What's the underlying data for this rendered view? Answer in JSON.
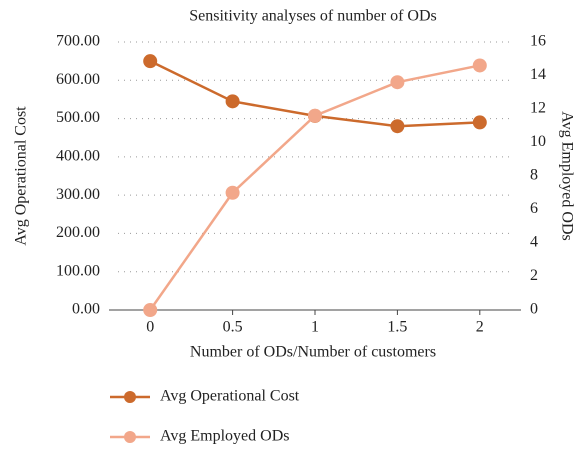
{
  "chart_data": {
    "type": "line",
    "title": "Sensitivity analyses of number of ODs",
    "x_label": "Number of ODs/Number of customers",
    "y_label": "Avg Operational Cost",
    "y2_label": "Avg Employed ODs",
    "categories": [
      "0",
      "0.5",
      "1",
      "1.5",
      "2"
    ],
    "series": [
      {
        "name": "Avg Operational Cost",
        "color": "#cc6a2c",
        "values": [
          650,
          545,
          507,
          480,
          490
        ]
      },
      {
        "name": "Avg Employed ODs",
        "color": "#f2a78a",
        "axis": "y2",
        "values": [
          0,
          7.0,
          11.6,
          13.6,
          14.6
        ]
      }
    ],
    "ylim": [
      0,
      700
    ],
    "yticks": [
      {
        "value": 0,
        "label": "0.00"
      },
      {
        "value": 100,
        "label": "100.00"
      },
      {
        "value": 200,
        "label": "200.00"
      },
      {
        "value": 300,
        "label": "300.00"
      },
      {
        "value": 400,
        "label": "400.00"
      },
      {
        "value": 500,
        "label": "500.00"
      },
      {
        "value": 600,
        "label": "600.00"
      },
      {
        "value": 700,
        "label": "700.00"
      }
    ],
    "y2lim": [
      0,
      16
    ],
    "y2ticks": [
      0,
      2,
      4,
      6,
      8,
      10,
      12,
      14,
      16
    ],
    "grid": true
  }
}
